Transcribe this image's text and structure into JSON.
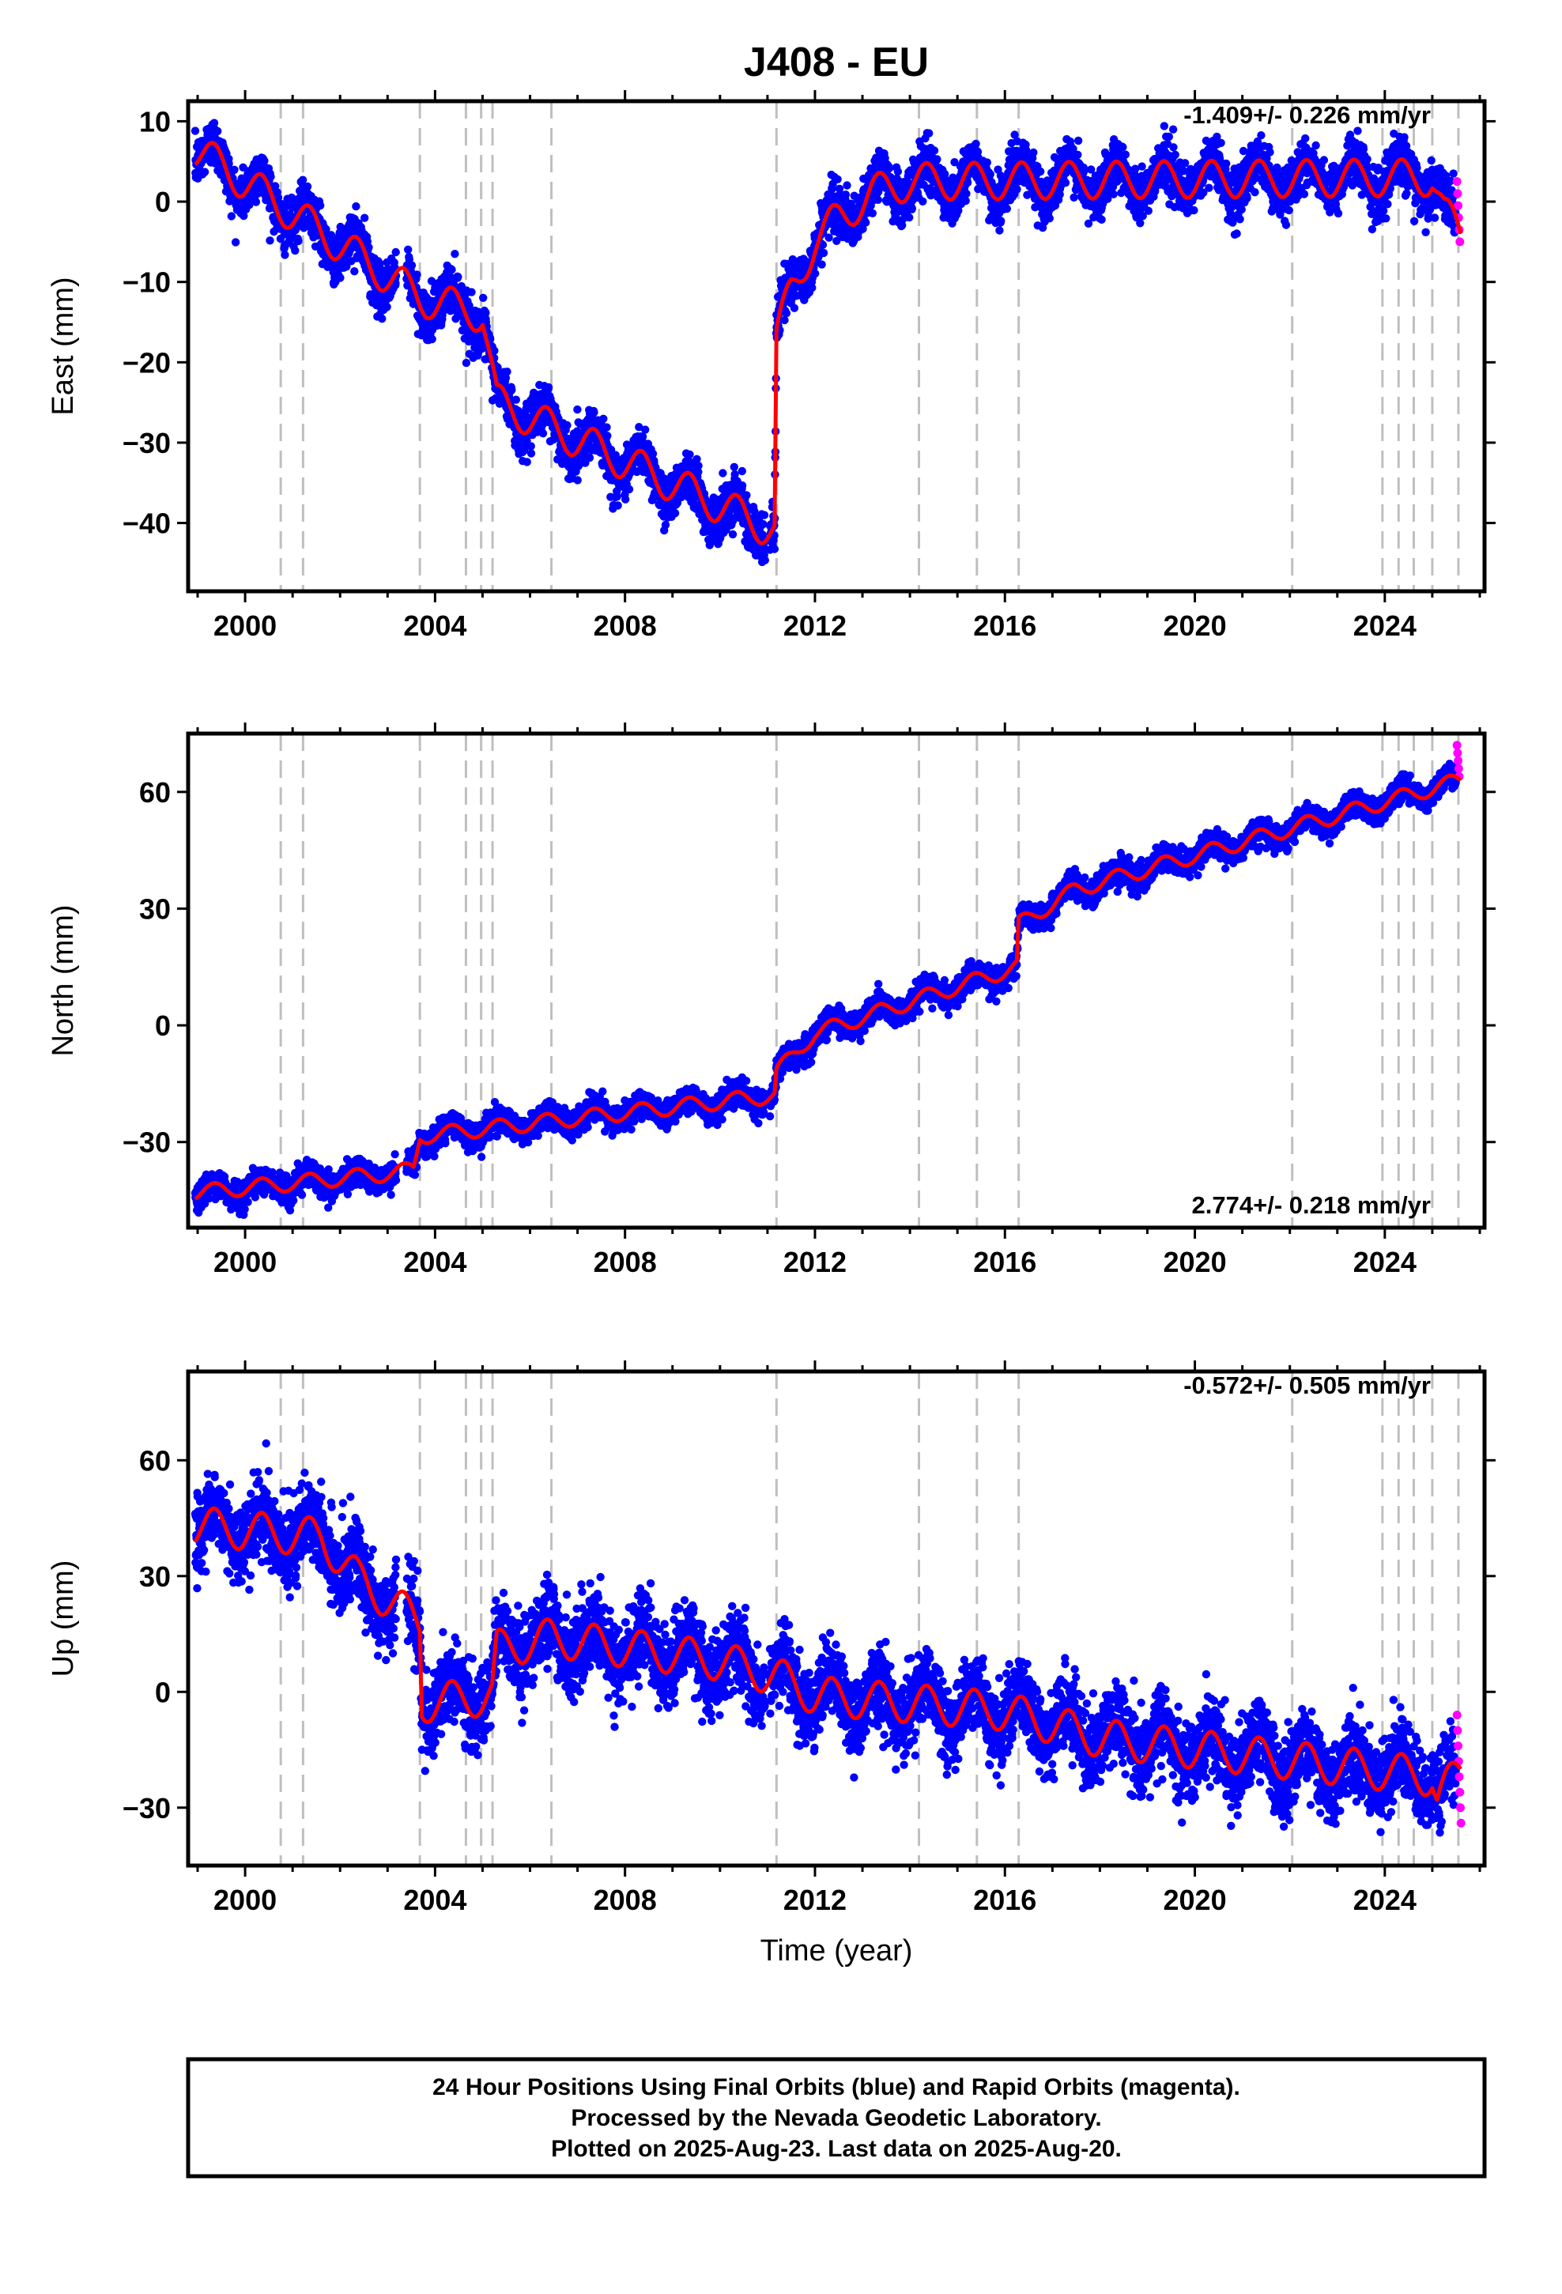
{
  "title": "J408 - EU",
  "xlabel": "Time (year)",
  "colors": {
    "final_points": "#0000ff",
    "rapid_points": "#ff00ff",
    "model_line": "#ff0000",
    "event_lines": "#bfbfbf"
  },
  "footer": {
    "line1": "24 Hour Positions Using Final Orbits (blue) and Rapid Orbits (magenta).",
    "line2": "Processed by the Nevada Geodetic Laboratory.",
    "line3": "Plotted on 2025-Aug-23. Last data on 2025-Aug-20."
  },
  "chart_data": [
    {
      "type": "scatter",
      "ylabel": "East (mm)",
      "rate_label": "-1.409+/- 0.226 mm/yr",
      "rate_position": "top-right",
      "xlim": [
        1998.8,
        2026.1
      ],
      "ylim": [
        -48.5,
        12.5
      ],
      "x_ticks": [
        2000,
        2004,
        2008,
        2012,
        2016,
        2020,
        2024
      ],
      "y_ticks": [
        -40,
        -30,
        -20,
        -10,
        0,
        10
      ],
      "event_lines_x": [
        2000.75,
        2001.22,
        2003.68,
        2004.65,
        2004.97,
        2005.21,
        2006.45,
        2011.19,
        2014.19,
        2015.41,
        2016.29,
        2022.05,
        2023.95,
        2024.29,
        2024.61,
        2025.0,
        2025.55
      ],
      "model_knots": [
        [
          1998.95,
          6.5
        ],
        [
          2003.7,
          -12.0
        ],
        [
          2005.0,
          -14.0
        ],
        [
          2005.3,
          -25.0
        ],
        [
          2011.15,
          -41.0
        ],
        [
          2011.19,
          -17.0
        ],
        [
          2011.5,
          -11.0
        ],
        [
          2012.0,
          -5.0
        ],
        [
          2012.5,
          -2.0
        ],
        [
          2013.2,
          1.0
        ],
        [
          2014.0,
          2.5
        ],
        [
          2025.0,
          3.0
        ],
        [
          2025.25,
          -1.5
        ],
        [
          2025.6,
          -4.0
        ]
      ],
      "seasonal_amplitude": 2.3,
      "scatter_sd": 1.5,
      "rapid_values": [
        2.5,
        1.0,
        -0.5,
        -2.0,
        -3.5,
        -5.0
      ]
    },
    {
      "type": "scatter",
      "ylabel": "North (mm)",
      "rate_label": "2.774+/- 0.218 mm/yr",
      "rate_position": "bottom-right",
      "xlim": [
        1998.8,
        2026.1
      ],
      "ylim": [
        -52,
        75
      ],
      "x_ticks": [
        2000,
        2004,
        2008,
        2012,
        2016,
        2020,
        2024
      ],
      "y_ticks": [
        -30,
        0,
        30,
        60
      ],
      "event_lines_x": [
        2000.75,
        2001.22,
        2003.68,
        2004.65,
        2004.97,
        2005.21,
        2006.45,
        2011.19,
        2014.19,
        2015.41,
        2016.29,
        2022.05,
        2023.95,
        2024.29,
        2024.61,
        2025.0,
        2025.55
      ],
      "model_knots": [
        [
          1998.95,
          -43.0
        ],
        [
          2003.1,
          -38.0
        ],
        [
          2003.55,
          -37.0
        ],
        [
          2003.68,
          -28.5
        ],
        [
          2011.15,
          -18.0
        ],
        [
          2011.19,
          -12.0
        ],
        [
          2012.0,
          -2.0
        ],
        [
          2016.25,
          15.0
        ],
        [
          2016.29,
          26.0
        ],
        [
          2017.5,
          35.0
        ],
        [
          2025.6,
          63.0
        ]
      ],
      "seasonal_amplitude": 2.0,
      "scatter_sd": 1.6,
      "rapid_values": [
        72,
        70,
        68,
        66,
        64
      ]
    },
    {
      "type": "scatter",
      "ylabel": "Up (mm)",
      "rate_label": "-0.572+/- 0.505 mm/yr",
      "rate_position": "top-right",
      "xlim": [
        1998.8,
        2026.1
      ],
      "ylim": [
        -45,
        83
      ],
      "x_ticks": [
        2000,
        2004,
        2008,
        2012,
        2016,
        2020,
        2024
      ],
      "y_ticks": [
        -30,
        0,
        30,
        60
      ],
      "event_lines_x": [
        2000.75,
        2001.22,
        2003.68,
        2004.65,
        2004.97,
        2005.21,
        2006.45,
        2011.19,
        2014.19,
        2015.41,
        2016.29,
        2022.05,
        2023.95,
        2024.29,
        2024.61,
        2025.0,
        2025.55
      ],
      "model_knots": [
        [
          1998.95,
          43.0
        ],
        [
          2001.6,
          40.0
        ],
        [
          2002.4,
          29.0
        ],
        [
          2003.68,
          18.0
        ],
        [
          2003.72,
          -3.0
        ],
        [
          2005.2,
          -1.0
        ],
        [
          2005.3,
          11.0
        ],
        [
          2006.45,
          14.0
        ],
        [
          2010.0,
          8.0
        ],
        [
          2011.2,
          4.0
        ],
        [
          2012.0,
          -1.0
        ],
        [
          2016.0,
          -5.0
        ],
        [
          2018.0,
          -12.0
        ],
        [
          2025.0,
          -22.0
        ],
        [
          2025.1,
          -28.0
        ],
        [
          2025.6,
          -20.0
        ]
      ],
      "seasonal_amplitude": 5.0,
      "scatter_sd": 5.0,
      "rapid_values": [
        -6,
        -10,
        -14,
        -18,
        -22,
        -26,
        -30,
        -34
      ]
    }
  ]
}
